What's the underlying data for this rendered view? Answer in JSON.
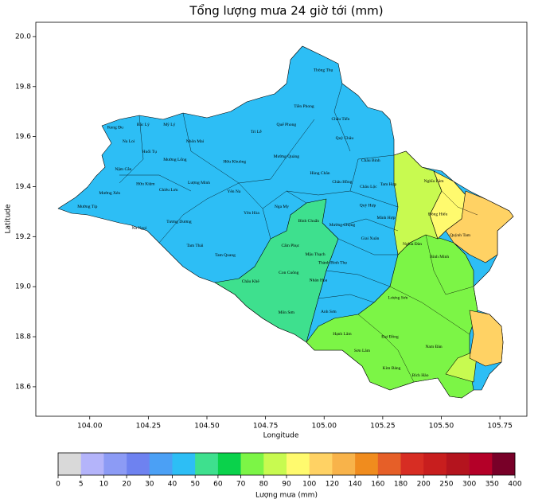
{
  "title": "Tổng lượng mưa 24 giờ tới (mm)",
  "axes": {
    "xlabel": "Longitude",
    "ylabel": "Latitude",
    "xlim": [
      103.77,
      105.865
    ],
    "ylim": [
      18.482,
      20.057
    ],
    "xticks": [
      {
        "value": 104,
        "label": "104.00"
      },
      104.25,
      {
        "value": 104.5,
        "label": "104.50"
      },
      104.75,
      {
        "value": 105,
        "label": "105.00"
      },
      105.25,
      {
        "value": 105.5,
        "label": "105.50"
      },
      105.75
    ],
    "yticks": [
      18.6,
      18.8,
      {
        "value": 19,
        "label": "19.0"
      },
      19.2,
      19.4,
      19.6,
      19.8,
      {
        "value": 20,
        "label": "20.0"
      }
    ]
  },
  "places": [
    {
      "name": "Thông Thụ",
      "lon": 104.996,
      "lat": 19.866
    },
    {
      "name": "Tiền Phong",
      "lon": 104.914,
      "lat": 19.72
    },
    {
      "name": "Châu Tiến",
      "lon": 105.07,
      "lat": 19.669
    },
    {
      "name": "Quế Phong",
      "lon": 104.839,
      "lat": 19.647
    },
    {
      "name": "Tri Lễ",
      "lon": 104.71,
      "lat": 19.618
    },
    {
      "name": "Quỳ Châu",
      "lon": 105.087,
      "lat": 19.593
    },
    {
      "name": "Keng Đu",
      "lon": 104.109,
      "lat": 19.637
    },
    {
      "name": "Bắc Lý",
      "lon": 104.228,
      "lat": 19.647
    },
    {
      "name": "Mỹ Lý",
      "lon": 104.34,
      "lat": 19.647
    },
    {
      "name": "Na Loi",
      "lon": 104.166,
      "lat": 19.58
    },
    {
      "name": "Huổi Tụ",
      "lon": 104.255,
      "lat": 19.539
    },
    {
      "name": "Nhôn Mai",
      "lon": 104.449,
      "lat": 19.58
    },
    {
      "name": "Mường Lống",
      "lon": 104.364,
      "lat": 19.507
    },
    {
      "name": "Hữu Khuông",
      "lon": 104.618,
      "lat": 19.5
    },
    {
      "name": "Mường Quàng",
      "lon": 104.839,
      "lat": 19.52
    },
    {
      "name": "Châu Bình",
      "lon": 105.199,
      "lat": 19.504
    },
    {
      "name": "Hùng Chân",
      "lon": 104.982,
      "lat": 19.453
    },
    {
      "name": "Nậm Cắn",
      "lon": 104.143,
      "lat": 19.469
    },
    {
      "name": "Hữu Kiệm",
      "lon": 104.238,
      "lat": 19.411
    },
    {
      "name": "Chiêu Lưu",
      "lon": 104.336,
      "lat": 19.386
    },
    {
      "name": "Lượng Minh",
      "lon": 104.466,
      "lat": 19.415
    },
    {
      "name": "Mường Xén",
      "lon": 104.085,
      "lat": 19.373
    },
    {
      "name": "Mường Típ",
      "lon": 103.99,
      "lat": 19.319
    },
    {
      "name": "Yên Na",
      "lon": 104.615,
      "lat": 19.38
    },
    {
      "name": "Yên Hòa",
      "lon": 104.69,
      "lat": 19.294
    },
    {
      "name": "Nga My",
      "lon": 104.819,
      "lat": 19.319
    },
    {
      "name": "Châu Hồng",
      "lon": 105.077,
      "lat": 19.418
    },
    {
      "name": "Châu Lộc",
      "lon": 105.189,
      "lat": 19.399
    },
    {
      "name": "Tam Hợp",
      "lon": 105.274,
      "lat": 19.408
    },
    {
      "name": "Na Ngoi",
      "lon": 104.211,
      "lat": 19.233
    },
    {
      "name": "Tương Dương",
      "lon": 104.381,
      "lat": 19.259
    },
    {
      "name": "Quỳ Hợp",
      "lon": 105.186,
      "lat": 19.325
    },
    {
      "name": "Mường Chọng",
      "lon": 105.077,
      "lat": 19.246
    },
    {
      "name": "Minh Hợp",
      "lon": 105.264,
      "lat": 19.275
    },
    {
      "name": "Tam Thái",
      "lon": 104.449,
      "lat": 19.163
    },
    {
      "name": "Tam Quang",
      "lon": 104.578,
      "lat": 19.125
    },
    {
      "name": "Bình Chuẩn",
      "lon": 104.934,
      "lat": 19.262
    },
    {
      "name": "Cẩm Phục",
      "lon": 104.856,
      "lat": 19.163
    },
    {
      "name": "Mậu Thạch",
      "lon": 104.962,
      "lat": 19.128
    },
    {
      "name": "Giai Xuân",
      "lon": 105.196,
      "lat": 19.192
    },
    {
      "name": "Nghĩa Đàn",
      "lon": 105.376,
      "lat": 19.17
    },
    {
      "name": "Thành Bình Thọ",
      "lon": 105.036,
      "lat": 19.096
    },
    {
      "name": "Châu Khê",
      "lon": 104.686,
      "lat": 19.02
    },
    {
      "name": "Con Cuông",
      "lon": 104.849,
      "lat": 19.055
    },
    {
      "name": "Nhân Hòa",
      "lon": 104.975,
      "lat": 19.026
    },
    {
      "name": "Môn Sơn",
      "lon": 104.839,
      "lat": 18.896
    },
    {
      "name": "Anh Sơn",
      "lon": 105.019,
      "lat": 18.899
    },
    {
      "name": "Hạnh Lâm",
      "lon": 105.077,
      "lat": 18.81
    },
    {
      "name": "Sơn Lâm",
      "lon": 105.162,
      "lat": 18.743
    },
    {
      "name": "Đại Đồng",
      "lon": 105.281,
      "lat": 18.8
    },
    {
      "name": "Kim Bảng",
      "lon": 105.288,
      "lat": 18.673
    },
    {
      "name": "Bích Hào",
      "lon": 105.41,
      "lat": 18.645
    },
    {
      "name": "Lượng Sơn",
      "lon": 105.315,
      "lat": 18.956
    },
    {
      "name": "Nam Đàn",
      "lon": 105.468,
      "lat": 18.759
    },
    {
      "name": "Nghĩa Lâm",
      "lon": 105.468,
      "lat": 19.421
    },
    {
      "name": "Đông Hiếu",
      "lon": 105.485,
      "lat": 19.29
    },
    {
      "name": "Quỳnh Tam",
      "lon": 105.58,
      "lat": 19.205
    },
    {
      "name": "Bình Minh",
      "lon": 105.492,
      "lat": 19.119
    }
  ],
  "colorbar": {
    "label": "Lượng mưa (mm)",
    "bounds": [
      0,
      5,
      10,
      20,
      30,
      40,
      50,
      60,
      70,
      80,
      90,
      100,
      120,
      140,
      160,
      180,
      200,
      250,
      300,
      350,
      400
    ],
    "colors": [
      "#d9d9d9",
      "#b4b4fa",
      "#8c9bf5",
      "#6e82f0",
      "#4ba0f5",
      "#2dbef5",
      "#3ee08e",
      "#0ad24b",
      "#7cf546",
      "#c8fa50",
      "#fffa6e",
      "#ffd264",
      "#f8b34a",
      "#f08c1e",
      "#e65f28",
      "#d72d23",
      "#c81e1e",
      "#b4141e",
      "#b40028",
      "#780028"
    ]
  }
}
